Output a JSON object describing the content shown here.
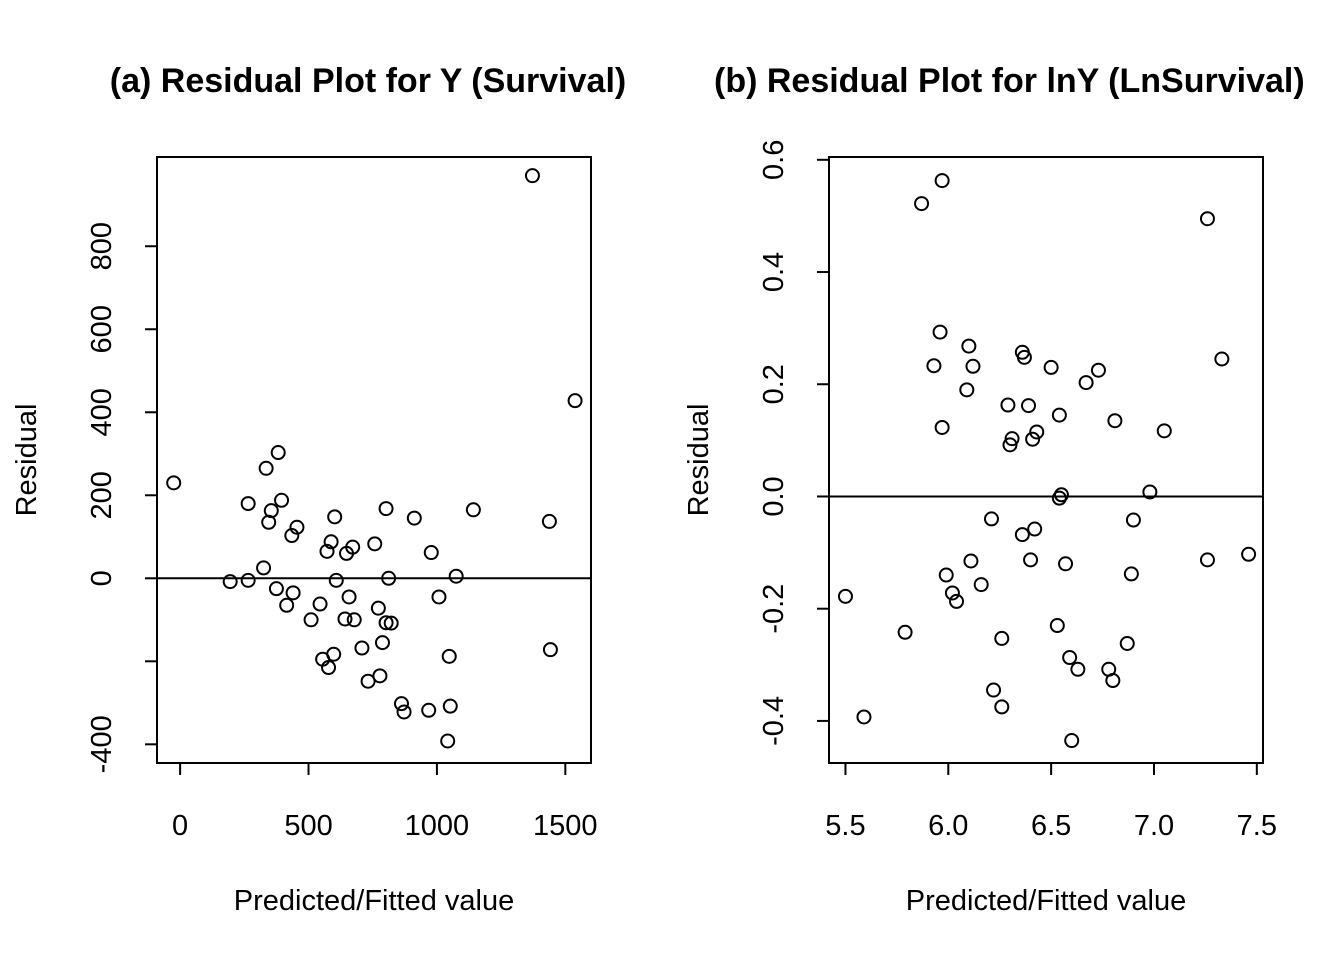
{
  "chart_data": [
    {
      "type": "scatter",
      "title": "(a) Residual Plot for Y (Survival)",
      "xlabel": "Predicted/Fitted value",
      "ylabel": "Residual",
      "xlim": [
        -90,
        1600
      ],
      "ylim": [
        -445,
        1015
      ],
      "x_ticks": [
        0,
        500,
        1000,
        1500
      ],
      "x_tick_labels": [
        "0",
        "500",
        "1000",
        "1500"
      ],
      "y_ticks": [
        -400,
        -200,
        0,
        200,
        400,
        600,
        800
      ],
      "y_tick_labels": [
        "-400",
        "",
        "0",
        "200",
        "400",
        "600",
        "800"
      ],
      "reference_line_y": 0,
      "grid": false,
      "points": [
        {
          "x": -25,
          "y": 230
        },
        {
          "x": 195,
          "y": -8
        },
        {
          "x": 265,
          "y": 180
        },
        {
          "x": 265,
          "y": -5
        },
        {
          "x": 325,
          "y": 25
        },
        {
          "x": 335,
          "y": 265
        },
        {
          "x": 345,
          "y": 135
        },
        {
          "x": 355,
          "y": 163
        },
        {
          "x": 375,
          "y": -25
        },
        {
          "x": 382,
          "y": 303
        },
        {
          "x": 395,
          "y": 188
        },
        {
          "x": 415,
          "y": -65
        },
        {
          "x": 435,
          "y": 103
        },
        {
          "x": 440,
          "y": -35
        },
        {
          "x": 455,
          "y": 123
        },
        {
          "x": 510,
          "y": -100
        },
        {
          "x": 545,
          "y": -62
        },
        {
          "x": 555,
          "y": -195
        },
        {
          "x": 572,
          "y": 65
        },
        {
          "x": 578,
          "y": -215
        },
        {
          "x": 588,
          "y": 88
        },
        {
          "x": 598,
          "y": -183
        },
        {
          "x": 602,
          "y": 148
        },
        {
          "x": 608,
          "y": -5
        },
        {
          "x": 642,
          "y": -98
        },
        {
          "x": 648,
          "y": 60
        },
        {
          "x": 658,
          "y": -45
        },
        {
          "x": 672,
          "y": 75
        },
        {
          "x": 678,
          "y": -100
        },
        {
          "x": 708,
          "y": -168
        },
        {
          "x": 732,
          "y": -248
        },
        {
          "x": 758,
          "y": 83
        },
        {
          "x": 772,
          "y": -72
        },
        {
          "x": 778,
          "y": -235
        },
        {
          "x": 788,
          "y": -155
        },
        {
          "x": 802,
          "y": 168
        },
        {
          "x": 802,
          "y": -107
        },
        {
          "x": 812,
          "y": 0
        },
        {
          "x": 822,
          "y": -108
        },
        {
          "x": 862,
          "y": -302
        },
        {
          "x": 872,
          "y": -322
        },
        {
          "x": 912,
          "y": 145
        },
        {
          "x": 968,
          "y": -318
        },
        {
          "x": 978,
          "y": 62
        },
        {
          "x": 1008,
          "y": -45
        },
        {
          "x": 1042,
          "y": -392
        },
        {
          "x": 1048,
          "y": -188
        },
        {
          "x": 1052,
          "y": -308
        },
        {
          "x": 1075,
          "y": 5
        },
        {
          "x": 1142,
          "y": 165
        },
        {
          "x": 1372,
          "y": 970
        },
        {
          "x": 1438,
          "y": 137
        },
        {
          "x": 1442,
          "y": -172
        },
        {
          "x": 1538,
          "y": 428
        }
      ]
    },
    {
      "type": "scatter",
      "title": "(b) Residual Plot for lnY (LnSurvival)",
      "xlabel": "Predicted/Fitted value",
      "ylabel": "Residual",
      "xlim": [
        5.42,
        7.53
      ],
      "ylim": [
        -0.475,
        0.605
      ],
      "x_ticks": [
        5.5,
        6.0,
        6.5,
        7.0,
        7.5
      ],
      "x_tick_labels": [
        "5.5",
        "6.0",
        "6.5",
        "7.0",
        "7.5"
      ],
      "y_ticks": [
        -0.4,
        -0.2,
        0.0,
        0.2,
        0.4,
        0.6
      ],
      "y_tick_labels": [
        "-0.4",
        "-0.2",
        "0.0",
        "0.2",
        "0.4",
        "0.6"
      ],
      "reference_line_y": 0,
      "grid": false,
      "points": [
        {
          "x": 5.5,
          "y": -0.178
        },
        {
          "x": 5.59,
          "y": -0.393
        },
        {
          "x": 5.79,
          "y": -0.242
        },
        {
          "x": 5.87,
          "y": 0.522
        },
        {
          "x": 5.93,
          "y": 0.233
        },
        {
          "x": 5.96,
          "y": 0.293
        },
        {
          "x": 5.97,
          "y": 0.563
        },
        {
          "x": 5.97,
          "y": 0.123
        },
        {
          "x": 5.99,
          "y": -0.14
        },
        {
          "x": 6.02,
          "y": -0.172
        },
        {
          "x": 6.04,
          "y": -0.187
        },
        {
          "x": 6.09,
          "y": 0.19
        },
        {
          "x": 6.1,
          "y": 0.268
        },
        {
          "x": 6.11,
          "y": -0.115
        },
        {
          "x": 6.12,
          "y": 0.232
        },
        {
          "x": 6.16,
          "y": -0.157
        },
        {
          "x": 6.21,
          "y": -0.04
        },
        {
          "x": 6.22,
          "y": -0.345
        },
        {
          "x": 6.26,
          "y": -0.375
        },
        {
          "x": 6.26,
          "y": -0.253
        },
        {
          "x": 6.29,
          "y": 0.163
        },
        {
          "x": 6.3,
          "y": 0.092
        },
        {
          "x": 6.31,
          "y": 0.103
        },
        {
          "x": 6.36,
          "y": 0.257
        },
        {
          "x": 6.37,
          "y": 0.248
        },
        {
          "x": 6.36,
          "y": -0.068
        },
        {
          "x": 6.39,
          "y": 0.162
        },
        {
          "x": 6.4,
          "y": -0.113
        },
        {
          "x": 6.41,
          "y": 0.102
        },
        {
          "x": 6.42,
          "y": -0.058
        },
        {
          "x": 6.43,
          "y": 0.115
        },
        {
          "x": 6.5,
          "y": 0.23
        },
        {
          "x": 6.53,
          "y": -0.23
        },
        {
          "x": 6.54,
          "y": 0.145
        },
        {
          "x": 6.54,
          "y": -0.003
        },
        {
          "x": 6.55,
          "y": 0.003
        },
        {
          "x": 6.57,
          "y": -0.12
        },
        {
          "x": 6.59,
          "y": -0.287
        },
        {
          "x": 6.6,
          "y": -0.435
        },
        {
          "x": 6.63,
          "y": -0.308
        },
        {
          "x": 6.67,
          "y": 0.203
        },
        {
          "x": 6.73,
          "y": 0.225
        },
        {
          "x": 6.78,
          "y": -0.308
        },
        {
          "x": 6.8,
          "y": -0.328
        },
        {
          "x": 6.81,
          "y": 0.135
        },
        {
          "x": 6.87,
          "y": -0.262
        },
        {
          "x": 6.89,
          "y": -0.138
        },
        {
          "x": 6.9,
          "y": -0.042
        },
        {
          "x": 6.98,
          "y": 0.008
        },
        {
          "x": 7.05,
          "y": 0.117
        },
        {
          "x": 7.26,
          "y": 0.495
        },
        {
          "x": 7.26,
          "y": -0.113
        },
        {
          "x": 7.33,
          "y": 0.245
        },
        {
          "x": 7.46,
          "y": -0.103
        }
      ]
    }
  ]
}
